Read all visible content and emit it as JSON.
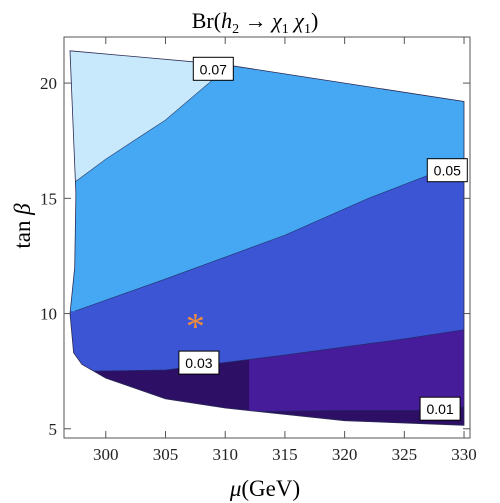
{
  "chart_data": {
    "type": "contour",
    "title": "Br(h₂ → χ₁ χ₁)",
    "title_parts": {
      "prefix": "Br(",
      "h": "h",
      "h_sub": "2",
      "arrow": " → ",
      "chi1": "χ",
      "chi1_sub": "1",
      "chi2": " χ",
      "chi2_sub": "1",
      "suffix": ")"
    },
    "xlabel": {
      "symbol": "μ",
      "unit": "(GeV)"
    },
    "ylabel": {
      "text": "tan",
      "symbol": "β"
    },
    "xlim": [
      296.5,
      330.5
    ],
    "ylim": [
      4.6,
      22.0
    ],
    "x_ticks": [
      300,
      305,
      310,
      315,
      320,
      325,
      330
    ],
    "y_ticks": [
      5,
      10,
      15,
      20
    ],
    "levels": [
      0.01,
      0.03,
      0.05,
      0.07
    ],
    "contour_labels": [
      {
        "text": "0.07",
        "x": 309.0,
        "y": 20.6
      },
      {
        "text": "0.05",
        "x": 328.6,
        "y": 16.2
      },
      {
        "text": "0.03",
        "x": 307.8,
        "y": 7.85
      },
      {
        "text": "0.01",
        "x": 328.0,
        "y": 5.85
      }
    ],
    "marker": {
      "symbol": "*",
      "x": 307.5,
      "y": 9.8,
      "color": "#f28c3c"
    },
    "region_colors": [
      "#2d1066",
      "#471c9a",
      "#3c55d4",
      "#46a8f2",
      "#c8e9fb"
    ],
    "boundary": {
      "top": [
        [
          297.0,
          21.4
        ],
        [
          310.0,
          20.8
        ],
        [
          330.0,
          19.2
        ]
      ],
      "right_x": 330.0,
      "bottom": [
        [
          297.0,
          10.0
        ],
        [
          297.3,
          8.3
        ],
        [
          298.0,
          7.8
        ],
        [
          300.0,
          7.2
        ],
        [
          305.0,
          6.3
        ],
        [
          310.0,
          5.9
        ],
        [
          320.0,
          5.35
        ],
        [
          330.0,
          5.15
        ]
      ],
      "left": [
        [
          297.0,
          21.4
        ],
        [
          297.5,
          15.2
        ],
        [
          297.4,
          12.0
        ],
        [
          297.0,
          10.0
        ]
      ]
    },
    "curves": {
      "c007": [
        [
          297.4,
          15.7
        ],
        [
          300.0,
          16.7
        ],
        [
          305.0,
          18.4
        ],
        [
          310.0,
          20.6
        ],
        [
          311.0,
          21.2
        ]
      ],
      "c005": [
        [
          297.4,
          10.1
        ],
        [
          305.0,
          11.5
        ],
        [
          315.0,
          13.4
        ],
        [
          322.0,
          15.0
        ],
        [
          330.0,
          16.6
        ]
      ],
      "c003": [
        [
          298.0,
          7.5
        ],
        [
          305.0,
          7.55
        ],
        [
          315.0,
          8.2
        ],
        [
          325.0,
          8.9
        ],
        [
          330.0,
          9.3
        ]
      ],
      "c001": [
        [
          312.0,
          5.75
        ],
        [
          320.0,
          5.8
        ],
        [
          328.0,
          5.8
        ],
        [
          330.0,
          5.95
        ]
      ]
    }
  }
}
